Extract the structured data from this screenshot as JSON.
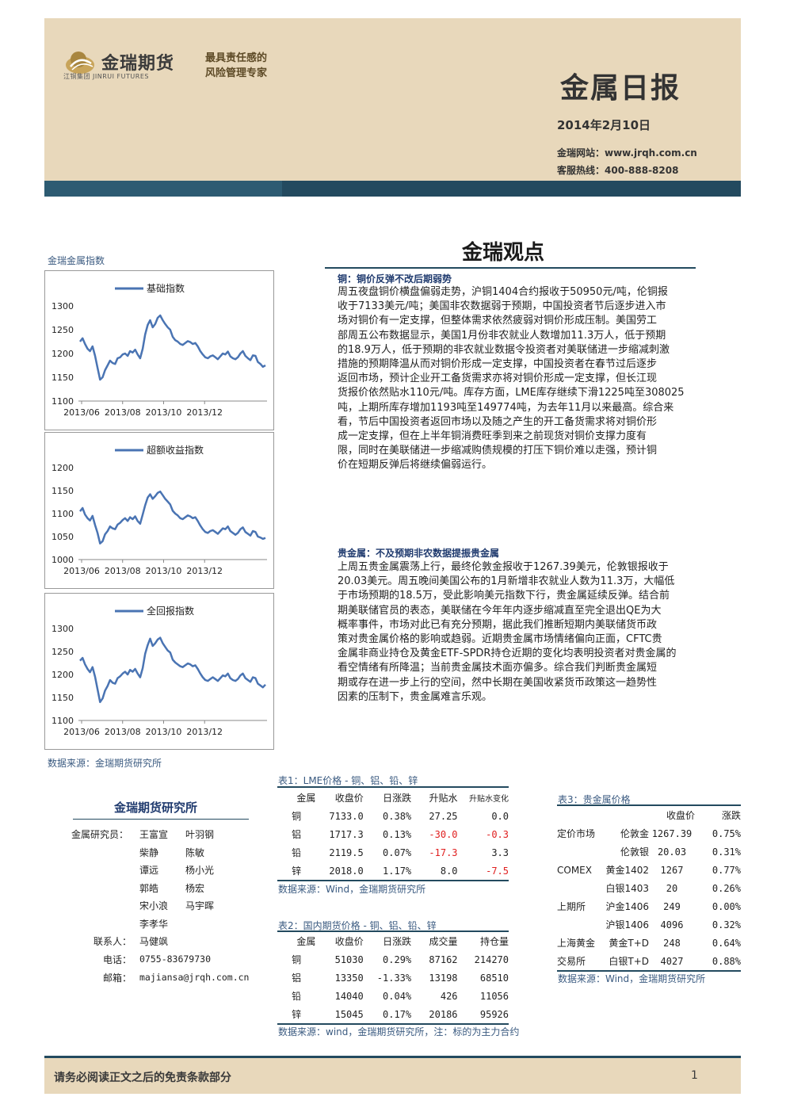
{
  "header": {
    "brand_cn": "金瑞期货",
    "brand_en": "江铜集团 JINRUI FUTURES",
    "slogan_line1": "最具责任感的",
    "slogan_line2": "风险管理专家",
    "title": "金属日报",
    "date": "2014年2月10日",
    "website": "金瑞网站：www.jrqh.com.cn",
    "hotline": "客服热线：400-888-8208"
  },
  "section_title": "金瑞观点",
  "index_label": "金瑞金属指数",
  "charts_source": "数据来源：金瑞期货研究所",
  "chart_data": [
    {
      "type": "line",
      "series": [
        {
          "name": "基础指数",
          "values": [
            1225,
            1232,
            1220,
            1210,
            1205,
            1215,
            1195,
            1170,
            1145,
            1150,
            1165,
            1175,
            1185,
            1180,
            1178,
            1190,
            1192,
            1198,
            1200,
            1195,
            1205,
            1202,
            1208,
            1198,
            1190,
            1210,
            1240,
            1260,
            1270,
            1255,
            1262,
            1275,
            1280,
            1270,
            1262,
            1255,
            1250,
            1235,
            1228,
            1225,
            1220,
            1218,
            1222,
            1226,
            1224,
            1220,
            1222,
            1215,
            1205,
            1198,
            1192,
            1190,
            1194,
            1196,
            1192,
            1188,
            1194,
            1200,
            1198,
            1204,
            1194,
            1190,
            1188,
            1192,
            1200,
            1205,
            1195,
            1190,
            1186,
            1196,
            1195,
            1182,
            1178,
            1172,
            1175
          ]
        }
      ],
      "x_tick_labels": [
        "2013/06",
        "2013/08",
        "2013/10",
        "2013/12"
      ],
      "ylim": [
        1100,
        1300
      ],
      "y_ticks": [
        1100,
        1150,
        1200,
        1250,
        1300
      ],
      "legend": "top-center"
    },
    {
      "type": "line",
      "series": [
        {
          "name": "超额收益指数",
          "values": [
            1105,
            1112,
            1098,
            1090,
            1085,
            1095,
            1075,
            1058,
            1035,
            1040,
            1055,
            1062,
            1072,
            1068,
            1066,
            1076,
            1080,
            1086,
            1090,
            1084,
            1092,
            1088,
            1094,
            1084,
            1078,
            1098,
            1118,
            1135,
            1142,
            1132,
            1138,
            1145,
            1148,
            1140,
            1132,
            1126,
            1120,
            1106,
            1100,
            1096,
            1090,
            1088,
            1092,
            1096,
            1094,
            1090,
            1092,
            1084,
            1074,
            1066,
            1060,
            1058,
            1062,
            1064,
            1060,
            1056,
            1062,
            1068,
            1066,
            1072,
            1062,
            1058,
            1054,
            1058,
            1066,
            1070,
            1060,
            1056,
            1052,
            1062,
            1060,
            1050,
            1048,
            1045,
            1047
          ]
        }
      ],
      "x_tick_labels": [
        "2013/06",
        "2013/08",
        "2013/10",
        "2013/12"
      ],
      "ylim": [
        1000,
        1200
      ],
      "y_ticks": [
        1000,
        1050,
        1100,
        1150,
        1200
      ],
      "legend": "top-center"
    },
    {
      "type": "line",
      "series": [
        {
          "name": "全回报指数",
          "values": [
            1230,
            1236,
            1222,
            1212,
            1205,
            1216,
            1195,
            1168,
            1140,
            1148,
            1165,
            1175,
            1188,
            1182,
            1180,
            1192,
            1196,
            1202,
            1206,
            1200,
            1210,
            1206,
            1212,
            1202,
            1194,
            1214,
            1245,
            1264,
            1278,
            1262,
            1268,
            1276,
            1280,
            1268,
            1260,
            1252,
            1248,
            1232,
            1226,
            1222,
            1218,
            1216,
            1220,
            1224,
            1222,
            1218,
            1220,
            1212,
            1202,
            1194,
            1188,
            1186,
            1190,
            1194,
            1190,
            1186,
            1192,
            1198,
            1196,
            1202,
            1192,
            1188,
            1186,
            1190,
            1198,
            1202,
            1192,
            1188,
            1184,
            1194,
            1192,
            1180,
            1176,
            1172,
            1178
          ]
        }
      ],
      "x_tick_labels": [
        "2013/06",
        "2013/08",
        "2013/10",
        "2013/12"
      ],
      "ylim": [
        1100,
        1300
      ],
      "y_ticks": [
        1100,
        1150,
        1200,
        1250,
        1300
      ],
      "legend": "top-center"
    }
  ],
  "copper": {
    "title": "铜：铜价反弹不改后期弱势",
    "lines": [
      "周五夜盘铜价横盘偏弱走势，沪铜1404合约报收于50950元/吨，伦铜报",
      "收于7133美元/吨；美国非农数据弱于预期，中国投资者节后逐步进入市",
      "场对铜价有一定支撑，但整体需求依然疲弱对铜价形成压制。美国劳工",
      "部周五公布数据显示，美国1月份非农就业人数增加11.3万人，低于预期",
      "的18.9万人，低于预期的非农就业数据令投资者对美联储进一步缩减刺激",
      "措施的预期降温从而对铜价形成一定支撑，中国投资者在春节过后逐步",
      "返回市场，预计企业开工备货需求亦将对铜价形成一定支撑，但长江现",
      "货报价依然贴水110元/吨。库存方面，LME库存继续下滑1225吨至308025",
      "吨，上期所库存增加1193吨至149774吨，为去年11月以来最高。综合来",
      "看，节后中国投资者返回市场以及随之产生的开工备货需求将对铜价形",
      "成一定支撑，但在上半年铜消费旺季到来之前现货对铜价支撑力度有",
      "限，同时在美联储进一步缩减购债规模的打压下铜价难以走强，预计铜",
      "价在短期反弹后将继续偏弱运行。"
    ]
  },
  "precious": {
    "title": "贵金属：不及预期非农数据提振贵金属",
    "lines": [
      "上周五贵金属震荡上行，最终伦敦金报收于1267.39美元，伦敦银报收于",
      "20.03美元。周五晚间美国公布的1月新增非农就业人数为11.3万，大幅低",
      "于市场预期的18.5万，受此影响美元指数下行，贵金属延续反弹。结合前",
      "期美联储官员的表态，美联储在今年年内逐步缩减直至完全退出QE为大",
      "概率事件，市场对此已有充分预期，据此我们推断短期内美联储货币政",
      "策对贵金属价格的影响或趋弱。近期贵金属市场情绪偏向正面，CFTC贵",
      "金属非商业持仓及黄金ETF-SPDR持仓近期的变化均表明投资者对贵金属的",
      "看空情绪有所降温；当前贵金属技术面亦偏多。综合我们判断贵金属短",
      "期或存在进一步上行的空间，然中长期在美国收紧货币政策这一趋势性",
      "因素的压制下，贵金属难言乐观。"
    ]
  },
  "institute": {
    "title": "金瑞期货研究所",
    "team_label": "金属研究员：",
    "researchers": [
      [
        "王富宣",
        "叶羽钢"
      ],
      [
        "柴静",
        "陈敏"
      ],
      [
        "谭远",
        "杨小光"
      ],
      [
        "郭皓",
        "杨宏"
      ],
      [
        "宋小浪",
        "马宇晖"
      ],
      [
        "李孝华",
        ""
      ]
    ],
    "contact_label": "联系人：",
    "contact_name": "马健飒",
    "phone_label": "电话：",
    "phone": "0755-83679730",
    "email_label": "邮箱：",
    "email": "majiansa@jrqh.com.cn"
  },
  "table1": {
    "caption": "表1：LME价格 - 铜、铝、铅、锌",
    "headers": [
      "金属",
      "收盘价",
      "日涨跌",
      "升贴水",
      "升贴水变化"
    ],
    "rows": [
      {
        "metal": "铜",
        "close": "7133.0",
        "change": "0.38%",
        "spread": "27.25",
        "spread_change": "0.0"
      },
      {
        "metal": "铝",
        "close": "1717.3",
        "change": "0.13%",
        "spread": "-30.0",
        "spread_change": "-0.3"
      },
      {
        "metal": "铅",
        "close": "2119.5",
        "change": "0.07%",
        "spread": "-17.3",
        "spread_change": "3.3"
      },
      {
        "metal": "锌",
        "close": "2018.0",
        "change": "1.17%",
        "spread": "8.0",
        "spread_change": "-7.5"
      }
    ],
    "source": "数据来源：Wind，金瑞期货研究所"
  },
  "table2": {
    "caption": "表2：国内期货价格 - 铜、铝、铅、锌",
    "headers": [
      "金属",
      "收盘价",
      "日涨跌",
      "成交量",
      "持仓量"
    ],
    "rows": [
      {
        "metal": "铜",
        "close": "51030",
        "change": "0.29%",
        "volume": "87162",
        "oi": "214270"
      },
      {
        "metal": "铝",
        "close": "13350",
        "change": "-1.33%",
        "volume": "13198",
        "oi": "68510"
      },
      {
        "metal": "铅",
        "close": "14040",
        "change": "0.04%",
        "volume": "426",
        "oi": "11056"
      },
      {
        "metal": "锌",
        "close": "15045",
        "change": "0.17%",
        "volume": "20186",
        "oi": "95926"
      }
    ],
    "source": "数据来源：wind，金瑞期货研究所，注：标的为主力合约"
  },
  "table3": {
    "caption": "表3：贵金属价格",
    "headers": [
      "收盘价",
      "涨跌"
    ],
    "rows": [
      {
        "market": "定价市场",
        "name": "伦敦金",
        "close": "1267.39",
        "change": "0.75%"
      },
      {
        "market": "",
        "name": "伦敦银",
        "close": "20.03",
        "change": "0.31%"
      },
      {
        "market": "COMEX",
        "name": "黄金1402",
        "close": "1267",
        "change": "0.77%"
      },
      {
        "market": "",
        "name": "白银1403",
        "close": "20",
        "change": "0.26%"
      },
      {
        "market": "上期所",
        "name": "沪金1406",
        "close": "249",
        "change": "0.00%"
      },
      {
        "market": "",
        "name": "沪银1406",
        "close": "4096",
        "change": "0.32%"
      },
      {
        "market": "上海黄金",
        "name": "黄金T+D",
        "close": "248",
        "change": "0.64%"
      },
      {
        "market": "交易所",
        "name": "白银T+D",
        "close": "4027",
        "change": "0.88%"
      }
    ],
    "source": "数据来源：Wind，金瑞期货研究所"
  },
  "footer": {
    "disclaimer": "请务必阅读正文之后的免责条款部分",
    "page": "1"
  },
  "colors": {
    "brand_navy": "#234a5f",
    "header_beige": "#e8d8bb",
    "line_blue": "#4a74b3",
    "negative_red": "#e02020"
  }
}
